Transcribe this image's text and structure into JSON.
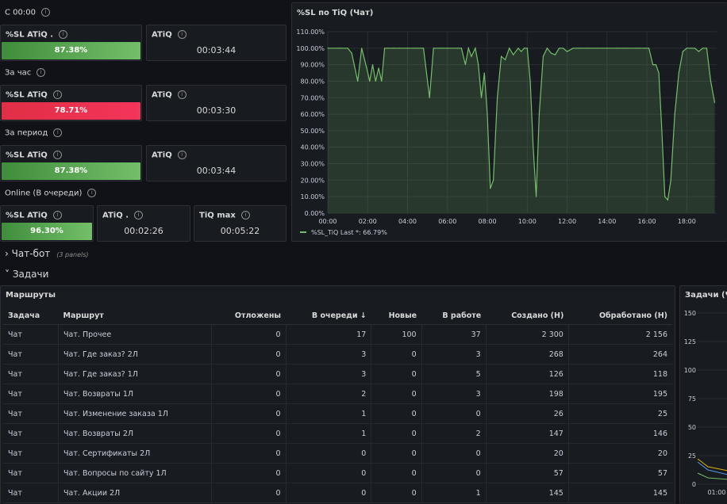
{
  "top": {
    "group1_label": "С 00:00",
    "group2_label": "За час",
    "group3_label": "За период",
    "group4_label": "Online (В очереди)",
    "g1_sl": {
      "title": "%SL ATiQ .",
      "value": "87.38%"
    },
    "g1_atiq": {
      "title": "ATiQ",
      "value": "00:03:44"
    },
    "g2_sl": {
      "title": "%SL ATiQ",
      "value": "78.71%"
    },
    "g2_atiq": {
      "title": "ATiQ",
      "value": "00:03:30"
    },
    "g3_sl": {
      "title": "%SL ATiQ",
      "value": "87.38%"
    },
    "g3_atiq": {
      "title": "ATiQ",
      "value": "00:03:44"
    },
    "g4_sl": {
      "title": "%SL ATiQ",
      "value": "96.30%"
    },
    "g4_atiq": {
      "title": "ATiQ .",
      "value": "00:02:26"
    },
    "g4_tiqmax": {
      "title": "TiQ max",
      "value": "00:05:22"
    }
  },
  "sections": {
    "chatbot": {
      "label": "Чат-бот",
      "count": "(3 panels)"
    },
    "tasks": {
      "label": "Задачи"
    }
  },
  "routes": {
    "title": "Маршруты",
    "columns": [
      "Задача",
      "Маршрут",
      "Отложены",
      "В очереди",
      "Новые",
      "В работе",
      "Создано (Н)",
      "Обработано (Н)"
    ],
    "sort_indicator": "↓",
    "rows": [
      [
        "Чат",
        "Чат. Прочее",
        "0",
        "17",
        "100",
        "37",
        "2 300",
        "2 156"
      ],
      [
        "Чат",
        "Чат. Где заказ? 2Л",
        "0",
        "3",
        "0",
        "3",
        "268",
        "264"
      ],
      [
        "Чат",
        "Чат. Где заказ? 1Л",
        "0",
        "3",
        "0",
        "5",
        "126",
        "118"
      ],
      [
        "Чат",
        "Чат. Возвраты 1Л",
        "0",
        "2",
        "0",
        "3",
        "198",
        "195"
      ],
      [
        "Чат",
        "Чат. Изменение заказа 1Л",
        "0",
        "1",
        "0",
        "0",
        "26",
        "25"
      ],
      [
        "Чат",
        "Чат. Возвраты 2Л",
        "0",
        "1",
        "0",
        "2",
        "147",
        "146"
      ],
      [
        "Чат",
        "Чат. Сертификаты 2Л",
        "0",
        "0",
        "0",
        "0",
        "20",
        "20"
      ],
      [
        "Чат",
        "Чат. Вопросы по сайту 1Л",
        "0",
        "0",
        "0",
        "0",
        "57",
        "57"
      ],
      [
        "Чат",
        "Чат. Акции 2Л",
        "0",
        "0",
        "0",
        "1",
        "145",
        "145"
      ]
    ]
  },
  "tasks_panel": {
    "title": "Задачи (Чат",
    "yticks": [
      "150",
      "125",
      "100",
      "75",
      "50",
      "25",
      "0"
    ],
    "xtick": "01:00"
  },
  "chart_data": {
    "type": "line",
    "title": "%SL по TiQ (Чат)",
    "xlabel": "",
    "ylabel": "",
    "xlim": [
      0,
      19.5
    ],
    "ylim": [
      0,
      110
    ],
    "x_ticks": [
      "00:00",
      "02:00",
      "04:00",
      "06:00",
      "08:00",
      "10:00",
      "12:00",
      "14:00",
      "16:00",
      "18:00"
    ],
    "y_ticks": [
      "0.00%",
      "10.00%",
      "20.00%",
      "30.00%",
      "40.00%",
      "50.00%",
      "60.00%",
      "70.00%",
      "80.00%",
      "90.00%",
      "100.00%",
      "110.00%"
    ],
    "grid": true,
    "legend_position": "bottom-left",
    "series": [
      {
        "name": "%SL_TiQ",
        "legend_extra": "Last *: 66.79%",
        "color": "#73bf69",
        "x": [
          0,
          0.6,
          1.0,
          1.2,
          1.5,
          1.7,
          1.95,
          2.1,
          2.25,
          2.4,
          2.55,
          2.7,
          2.85,
          3.0,
          3.3,
          3.6,
          4.0,
          4.5,
          4.8,
          4.95,
          5.1,
          5.3,
          5.6,
          6.0,
          6.5,
          6.7,
          6.9,
          7.05,
          7.2,
          7.4,
          7.55,
          7.7,
          7.85,
          8.0,
          8.15,
          8.3,
          8.5,
          8.7,
          8.9,
          9.1,
          9.3,
          9.55,
          9.7,
          9.85,
          10.0,
          10.15,
          10.3,
          10.45,
          10.6,
          10.8,
          11.0,
          11.2,
          11.4,
          11.6,
          11.8,
          12.0,
          12.3,
          12.6,
          13.0,
          13.5,
          14.0,
          14.5,
          15.0,
          15.5,
          15.9,
          16.1,
          16.3,
          16.45,
          16.6,
          16.75,
          16.9,
          17.05,
          17.2,
          17.4,
          17.6,
          17.8,
          18.0,
          18.2,
          18.4,
          18.6,
          18.8,
          19.0,
          19.2,
          19.4
        ],
        "y": [
          100,
          100,
          100,
          97,
          80,
          100,
          88,
          80,
          90,
          80,
          88,
          80,
          100,
          100,
          100,
          100,
          100,
          100,
          100,
          85,
          70,
          100,
          100,
          100,
          100,
          100,
          90,
          100,
          95,
          100,
          90,
          70,
          85,
          60,
          15,
          20,
          70,
          95,
          93,
          100,
          96,
          100,
          98,
          100,
          100,
          80,
          40,
          10,
          60,
          95,
          100,
          97,
          96,
          100,
          100,
          98,
          100,
          100,
          100,
          100,
          100,
          100,
          100,
          100,
          100,
          100,
          90,
          90,
          85,
          50,
          10,
          8,
          20,
          60,
          85,
          98,
          100,
          100,
          100,
          98,
          100,
          100,
          80,
          67
        ]
      }
    ]
  }
}
